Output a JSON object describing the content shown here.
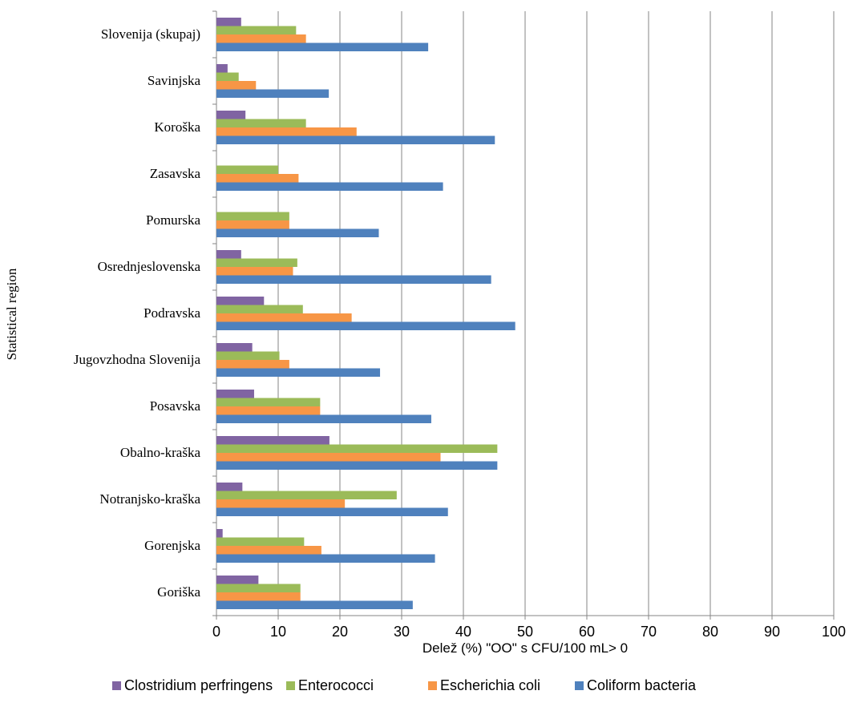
{
  "chart_data": {
    "type": "bar",
    "orientation": "horizontal",
    "categories": [
      "Goriška",
      "Gorenjska",
      "Notranjsko-kraška",
      "Obalno-kraška",
      "Posavska",
      "Jugovzhodna Slovenija",
      "Podravska",
      "Osrednjeslovenska",
      "Pomurska",
      "Zasavska",
      "Koroška",
      "Savinjska",
      "Slovenija (skupaj)"
    ],
    "series": [
      {
        "name": "Clostridium perfringens",
        "color": "#8064A2",
        "values": [
          6.8,
          1.0,
          4.2,
          18.3,
          6.1,
          5.8,
          7.7,
          4.0,
          0,
          0,
          4.7,
          1.8,
          4.0
        ]
      },
      {
        "name": "Enterococci",
        "color": "#9BBB59",
        "values": [
          13.6,
          14.2,
          29.2,
          45.5,
          16.8,
          10.2,
          14.0,
          13.1,
          11.8,
          10.0,
          14.5,
          3.6,
          12.9
        ]
      },
      {
        "name": "Escherichia coli",
        "color": "#F79646",
        "values": [
          13.6,
          17.0,
          20.8,
          36.3,
          16.8,
          11.8,
          21.9,
          12.4,
          11.8,
          13.3,
          22.7,
          6.4,
          14.5
        ]
      },
      {
        "name": "Coliform bacteria",
        "color": "#4F81BD",
        "values": [
          31.8,
          35.4,
          37.5,
          45.5,
          34.8,
          26.5,
          48.4,
          44.5,
          26.3,
          36.7,
          45.1,
          18.2,
          34.3
        ]
      }
    ],
    "xlabel": "Delež (%) \"OO\" s CFU/100 mL> 0",
    "ylabel": "Statistical region",
    "xlim": [
      0,
      100
    ],
    "xticks": [
      "0",
      "10",
      "20",
      "30",
      "40",
      "50",
      "60",
      "70",
      "80",
      "90",
      "100"
    ],
    "grid": "vertical",
    "legend_position": "bottom"
  }
}
